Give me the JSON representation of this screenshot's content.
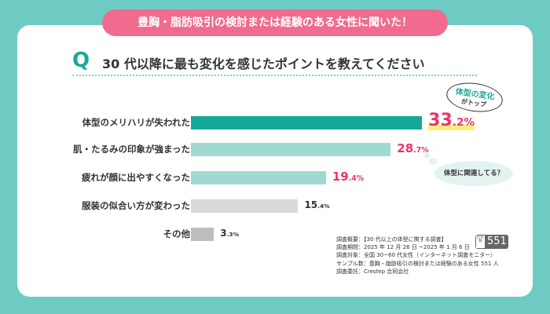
{
  "header": {
    "banner": "豊胸・脂肪吸引の検討または経験のある女性に聞いた！",
    "q_mark": "Q",
    "question": "30 代以降に最も変化を感じたポイントを教えてください"
  },
  "callouts": {
    "top_a": "体型の変化",
    "top_b": "がトップ",
    "related": "体型に関連してる？"
  },
  "chart_data": {
    "type": "bar",
    "orientation": "horizontal",
    "categories": [
      "体型のメリハリが失われた",
      "肌・たるみの印象が強まった",
      "疲れが顔に出やすくなった",
      "服装の似合い方が変わった",
      "その他"
    ],
    "values": [
      33.2,
      28.7,
      19.4,
      15.4,
      3.3
    ],
    "labels": [
      [
        "33",
        ".2%"
      ],
      [
        "28",
        ".7%"
      ],
      [
        "19",
        ".4%"
      ],
      [
        "15",
        ".4%"
      ],
      [
        "3",
        ".3%"
      ]
    ],
    "unit": "%",
    "colors": [
      "#13a999",
      "#9fd9d2",
      "#9fd9d2",
      "#d9d9d9",
      "#bdbdbd"
    ]
  },
  "notes": [
    "調査概要：【30 代以上の体型に関する調査】",
    "調査期間：2025 年 12 月 26 日 ~2025 年 1 月 6 日",
    "調査対象：全国 30~60 代女性（インターネット調査モニター）",
    "サンプル数：豊胸・脂肪吸引の検討または経験のある女性 551 人",
    "調査委託：Crestep 合同会社"
  ],
  "badge": {
    "label": "回答数",
    "value": "551"
  }
}
